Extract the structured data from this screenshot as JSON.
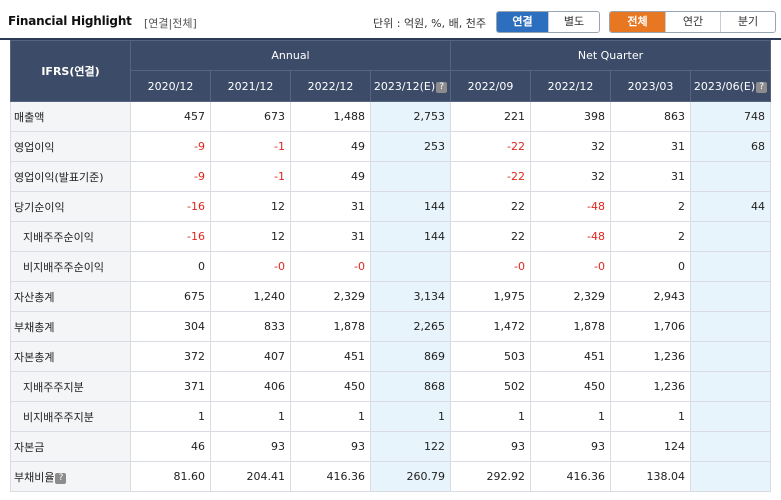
{
  "header": {
    "title": "Financial Highlight",
    "subtitle": "[연결|전체]",
    "unit": "단위 : 억원, %, 배, 천주",
    "basis_toggle": [
      "연결",
      "별도"
    ],
    "period_toggle": [
      "전체",
      "연간",
      "분기"
    ],
    "info_icon_text": "?"
  },
  "table": {
    "corner_label": "IFRS(연결)",
    "group_headers": [
      "Annual",
      "Net Quarter"
    ],
    "columns": [
      "2020/12",
      "2021/12",
      "2022/12",
      "2023/12(E)",
      "2022/09",
      "2022/12",
      "2023/03",
      "2023/06(E)"
    ],
    "rows": [
      {
        "label": "매출액",
        "indent": false,
        "values": [
          "457",
          "673",
          "1,488",
          "2,753",
          "221",
          "398",
          "863",
          "748"
        ]
      },
      {
        "label": "영업이익",
        "indent": false,
        "values": [
          "-9",
          "-1",
          "49",
          "253",
          "-22",
          "32",
          "31",
          "68"
        ]
      },
      {
        "label": "영업이익(발표기준)",
        "indent": false,
        "values": [
          "-9",
          "-1",
          "49",
          "",
          "-22",
          "32",
          "31",
          ""
        ]
      },
      {
        "label": "당기순이익",
        "indent": false,
        "values": [
          "-16",
          "12",
          "31",
          "144",
          "22",
          "-48",
          "2",
          "44"
        ]
      },
      {
        "label": "지배주주순이익",
        "indent": true,
        "values": [
          "-16",
          "12",
          "31",
          "144",
          "22",
          "-48",
          "2",
          ""
        ]
      },
      {
        "label": "비지배주주순이익",
        "indent": true,
        "values": [
          "0",
          "-0",
          "-0",
          "",
          "-0",
          "-0",
          "0",
          ""
        ]
      },
      {
        "label": "자산총계",
        "indent": false,
        "values": [
          "675",
          "1,240",
          "2,329",
          "3,134",
          "1,975",
          "2,329",
          "2,943",
          ""
        ]
      },
      {
        "label": "부채총계",
        "indent": false,
        "values": [
          "304",
          "833",
          "1,878",
          "2,265",
          "1,472",
          "1,878",
          "1,706",
          ""
        ]
      },
      {
        "label": "자본총계",
        "indent": false,
        "values": [
          "372",
          "407",
          "451",
          "869",
          "503",
          "451",
          "1,236",
          ""
        ]
      },
      {
        "label": "지배주주지분",
        "indent": true,
        "values": [
          "371",
          "406",
          "450",
          "868",
          "502",
          "450",
          "1,236",
          ""
        ]
      },
      {
        "label": "비지배주주지분",
        "indent": true,
        "values": [
          "1",
          "1",
          "1",
          "1",
          "1",
          "1",
          "1",
          ""
        ]
      },
      {
        "label": "자본금",
        "indent": false,
        "values": [
          "46",
          "93",
          "93",
          "122",
          "93",
          "93",
          "124",
          ""
        ]
      },
      {
        "label": "부채비율",
        "indent": false,
        "info": true,
        "values": [
          "81.60",
          "204.41",
          "416.36",
          "260.79",
          "292.92",
          "416.36",
          "138.04",
          ""
        ]
      }
    ]
  },
  "colors": {
    "header_bg": "#3c4b67",
    "estimate_bg": "#e8f4fb",
    "negative": "#e0261c",
    "basis_active": "#2d6fbf",
    "period_active": "#e87722"
  }
}
